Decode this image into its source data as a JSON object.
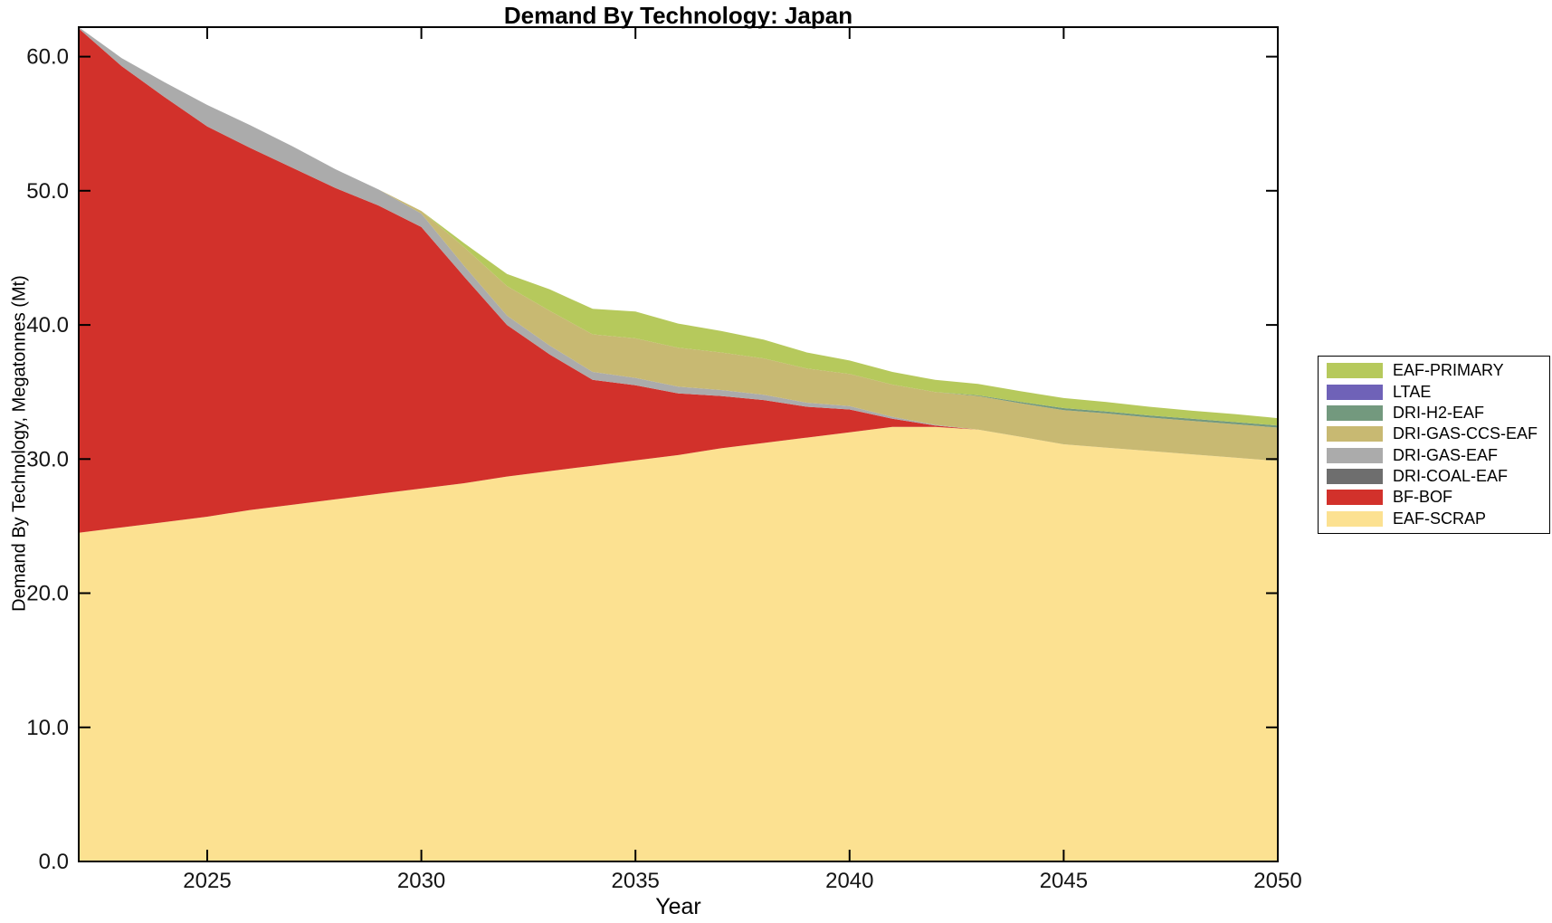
{
  "chart_data": {
    "type": "area",
    "stacked": true,
    "title": "Demand By Technology: Japan",
    "xlabel": "Year",
    "ylabel": "Demand By Technology, Megatonnes (Mt)",
    "grid": false,
    "legend_position": "right-outside",
    "xlim": [
      2022,
      2050
    ],
    "ylim": [
      0,
      62.2
    ],
    "xticks": [
      2025,
      2030,
      2035,
      2040,
      2045,
      2050
    ],
    "yticks": [
      0,
      10,
      20,
      30,
      40,
      50,
      60
    ],
    "ytick_labels": [
      "0.0",
      "10.0",
      "20.0",
      "30.0",
      "40.0",
      "50.0",
      "60.0"
    ],
    "x": [
      2022,
      2023,
      2024,
      2025,
      2026,
      2027,
      2028,
      2029,
      2030,
      2031,
      2032,
      2033,
      2034,
      2035,
      2036,
      2037,
      2038,
      2039,
      2040,
      2041,
      2042,
      2043,
      2044,
      2045,
      2046,
      2047,
      2048,
      2049,
      2050
    ],
    "series": [
      {
        "name": "EAF-SCRAP",
        "color": "#fce191",
        "values": [
          24.5,
          24.9,
          25.3,
          25.7,
          26.2,
          26.6,
          27.0,
          27.4,
          27.8,
          28.2,
          28.7,
          29.1,
          29.5,
          29.9,
          30.3,
          30.8,
          31.2,
          31.6,
          32.0,
          32.4,
          32.4,
          32.2,
          31.65,
          31.1,
          30.85,
          30.6,
          30.35,
          30.1,
          29.85
        ]
      },
      {
        "name": "BF-BOF",
        "color": "#d2312b",
        "values": [
          37.6,
          34.4,
          31.7,
          29.1,
          27.0,
          25.1,
          23.2,
          21.5,
          19.5,
          15.4,
          11.3,
          8.7,
          6.4,
          5.6,
          4.6,
          3.9,
          3.2,
          2.3,
          1.7,
          0.6,
          0.1,
          0,
          0,
          0,
          0,
          0,
          0,
          0,
          0
        ]
      },
      {
        "name": "DRI-COAL-EAF",
        "color": "#6e6e6e",
        "values": [
          0,
          0,
          0,
          0,
          0,
          0,
          0,
          0,
          0,
          0,
          0,
          0,
          0,
          0,
          0,
          0,
          0,
          0,
          0,
          0,
          0,
          0,
          0,
          0,
          0,
          0,
          0,
          0,
          0
        ]
      },
      {
        "name": "DRI-GAS-EAF",
        "color": "#ababab",
        "values": [
          0.1,
          0.6,
          1.1,
          1.6,
          1.7,
          1.6,
          1.4,
          1.2,
          1.0,
          0.8,
          0.7,
          0.65,
          0.6,
          0.55,
          0.5,
          0.45,
          0.4,
          0.3,
          0.25,
          0.15,
          0.05,
          0,
          0,
          0,
          0,
          0,
          0,
          0,
          0
        ]
      },
      {
        "name": "DRI-GAS-CCS-EAF",
        "color": "#c8b972",
        "values": [
          0,
          0,
          0,
          0,
          0,
          0,
          0,
          0,
          0.2,
          1.4,
          2.2,
          2.6,
          2.8,
          2.95,
          2.9,
          2.8,
          2.7,
          2.55,
          2.4,
          2.4,
          2.45,
          2.5,
          2.5,
          2.55,
          2.55,
          2.5,
          2.5,
          2.5,
          2.5
        ]
      },
      {
        "name": "DRI-H2-EAF",
        "color": "#73997e",
        "values": [
          0,
          0,
          0,
          0,
          0,
          0,
          0,
          0,
          0,
          0,
          0,
          0,
          0,
          0,
          0,
          0,
          0,
          0,
          0,
          0,
          0,
          0.05,
          0.1,
          0.15,
          0.15,
          0.15,
          0.15,
          0.15,
          0.15
        ]
      },
      {
        "name": "LTAE",
        "color": "#6f62b8",
        "values": [
          0,
          0,
          0,
          0,
          0,
          0,
          0,
          0,
          0,
          0,
          0,
          0,
          0,
          0,
          0,
          0,
          0,
          0,
          0,
          0,
          0,
          0,
          0,
          0,
          0,
          0,
          0,
          0,
          0
        ]
      },
      {
        "name": "EAF-PRIMARY",
        "color": "#b6c95c",
        "values": [
          0,
          0,
          0,
          0,
          0,
          0,
          0,
          0,
          0,
          0.3,
          0.9,
          1.6,
          1.9,
          2.0,
          1.8,
          1.6,
          1.4,
          1.2,
          1.0,
          0.95,
          0.9,
          0.85,
          0.8,
          0.75,
          0.7,
          0.65,
          0.6,
          0.6,
          0.55
        ]
      }
    ]
  },
  "legend": {
    "items": [
      {
        "label": "EAF-PRIMARY"
      },
      {
        "label": "LTAE"
      },
      {
        "label": "DRI-H2-EAF"
      },
      {
        "label": "DRI-GAS-CCS-EAF"
      },
      {
        "label": "DRI-GAS-EAF"
      },
      {
        "label": "DRI-COAL-EAF"
      },
      {
        "label": "BF-BOF"
      },
      {
        "label": "EAF-SCRAP"
      }
    ]
  }
}
